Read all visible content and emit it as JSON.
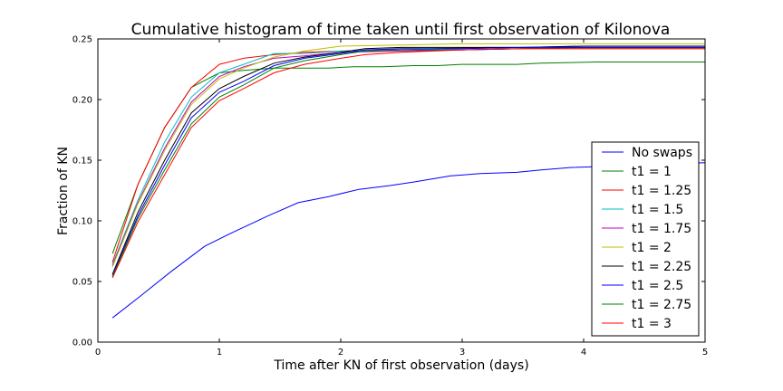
{
  "chart_data": {
    "type": "line",
    "title": "Cumulative histogram of time taken until first observation of Kilonova",
    "xlabel": "Time after KN of first observation (days)",
    "ylabel": "Fraction of KN",
    "xlim": [
      0,
      5
    ],
    "ylim": [
      0,
      0.25
    ],
    "xticks": [
      0,
      1,
      2,
      3,
      4,
      5
    ],
    "xtick_labels": [
      "0",
      "1",
      "2",
      "3",
      "4",
      "5"
    ],
    "yticks": [
      0.0,
      0.05,
      0.1,
      0.15,
      0.2,
      0.25
    ],
    "ytick_labels": [
      "0.00",
      "0.05",
      "0.10",
      "0.15",
      "0.20",
      "0.25"
    ],
    "grid": false,
    "legend_position": "right",
    "series": [
      {
        "name": "No swaps",
        "color": "#0000ff",
        "x": [
          0.12,
          0.35,
          0.6,
          0.88,
          1.1,
          1.4,
          1.65,
          1.9,
          2.15,
          2.4,
          2.6,
          2.9,
          3.15,
          3.45,
          3.65,
          3.9,
          4.2,
          4.45,
          4.7,
          5.0
        ],
        "y": [
          0.02,
          0.038,
          0.058,
          0.079,
          0.09,
          0.104,
          0.115,
          0.12,
          0.126,
          0.129,
          0.132,
          0.137,
          0.139,
          0.14,
          0.142,
          0.144,
          0.145,
          0.146,
          0.147,
          0.148
        ]
      },
      {
        "name": "t1 = 1",
        "color": "#008000",
        "x": [
          0.12,
          0.33,
          0.55,
          0.77,
          1.0,
          1.2,
          1.45,
          1.7,
          1.9,
          2.1,
          2.35,
          2.6,
          2.8,
          3.0,
          3.45,
          3.65,
          4.1,
          4.5,
          5.0
        ],
        "y": [
          0.073,
          0.13,
          0.177,
          0.21,
          0.222,
          0.224,
          0.226,
          0.226,
          0.226,
          0.227,
          0.227,
          0.228,
          0.228,
          0.229,
          0.229,
          0.23,
          0.231,
          0.231,
          0.231
        ]
      },
      {
        "name": "t1 = 1.25",
        "color": "#ff0000",
        "x": [
          0.12,
          0.33,
          0.55,
          0.77,
          1.0,
          1.2,
          1.45,
          1.7,
          2.0,
          2.4,
          2.8,
          3.2,
          3.6,
          4.0,
          4.5,
          5.0
        ],
        "y": [
          0.066,
          0.13,
          0.177,
          0.21,
          0.229,
          0.234,
          0.237,
          0.239,
          0.24,
          0.241,
          0.242,
          0.243,
          0.243,
          0.244,
          0.244,
          0.244
        ]
      },
      {
        "name": "t1 = 1.5",
        "color": "#00bfbf",
        "x": [
          0.12,
          0.33,
          0.55,
          0.77,
          1.0,
          1.2,
          1.45,
          1.7,
          2.0,
          2.5,
          3.0,
          3.5,
          4.0,
          5.0
        ],
        "y": [
          0.064,
          0.117,
          0.165,
          0.202,
          0.222,
          0.229,
          0.238,
          0.238,
          0.24,
          0.241,
          0.242,
          0.243,
          0.244,
          0.244
        ]
      },
      {
        "name": "t1 = 1.75",
        "color": "#bf00bf",
        "x": [
          0.12,
          0.33,
          0.55,
          0.77,
          1.0,
          1.2,
          1.45,
          1.7,
          2.0,
          2.5,
          3.0,
          3.5,
          4.0,
          5.0
        ],
        "y": [
          0.063,
          0.115,
          0.16,
          0.198,
          0.219,
          0.227,
          0.234,
          0.236,
          0.239,
          0.24,
          0.241,
          0.242,
          0.243,
          0.243
        ]
      },
      {
        "name": "t1 = 2",
        "color": "#bfbf00",
        "x": [
          0.12,
          0.33,
          0.55,
          0.77,
          1.0,
          1.2,
          1.45,
          1.7,
          2.0,
          2.5,
          3.0,
          3.5,
          4.0,
          5.0
        ],
        "y": [
          0.062,
          0.114,
          0.158,
          0.196,
          0.217,
          0.226,
          0.235,
          0.24,
          0.244,
          0.245,
          0.246,
          0.246,
          0.246,
          0.246
        ]
      },
      {
        "name": "t1 = 2.25",
        "color": "#000000",
        "x": [
          0.12,
          0.33,
          0.55,
          0.77,
          1.0,
          1.2,
          1.45,
          1.7,
          2.0,
          2.2,
          2.5,
          3.0,
          3.5,
          4.0,
          5.0
        ],
        "y": [
          0.056,
          0.107,
          0.15,
          0.189,
          0.209,
          0.219,
          0.23,
          0.235,
          0.239,
          0.242,
          0.243,
          0.243,
          0.243,
          0.244,
          0.244
        ]
      },
      {
        "name": "t1 = 2.5",
        "color": "#0000ff",
        "x": [
          0.12,
          0.33,
          0.55,
          0.77,
          1.0,
          1.2,
          1.45,
          1.7,
          2.0,
          2.2,
          2.5,
          3.0,
          3.5,
          4.0,
          5.0
        ],
        "y": [
          0.055,
          0.104,
          0.146,
          0.185,
          0.206,
          0.215,
          0.228,
          0.234,
          0.238,
          0.241,
          0.242,
          0.242,
          0.243,
          0.243,
          0.243
        ]
      },
      {
        "name": "t1 = 2.75",
        "color": "#008000",
        "x": [
          0.12,
          0.33,
          0.55,
          0.77,
          1.0,
          1.2,
          1.45,
          1.7,
          2.0,
          2.2,
          2.5,
          3.0,
          3.5,
          4.0,
          5.0
        ],
        "y": [
          0.054,
          0.102,
          0.142,
          0.18,
          0.202,
          0.212,
          0.226,
          0.232,
          0.237,
          0.24,
          0.241,
          0.241,
          0.242,
          0.242,
          0.242
        ]
      },
      {
        "name": "t1 = 3",
        "color": "#ff0000",
        "x": [
          0.12,
          0.33,
          0.55,
          0.77,
          1.0,
          1.2,
          1.45,
          1.7,
          2.0,
          2.2,
          2.5,
          3.0,
          3.5,
          4.0,
          5.0
        ],
        "y": [
          0.053,
          0.099,
          0.138,
          0.177,
          0.199,
          0.209,
          0.222,
          0.229,
          0.234,
          0.237,
          0.239,
          0.241,
          0.242,
          0.242,
          0.242
        ]
      }
    ]
  }
}
